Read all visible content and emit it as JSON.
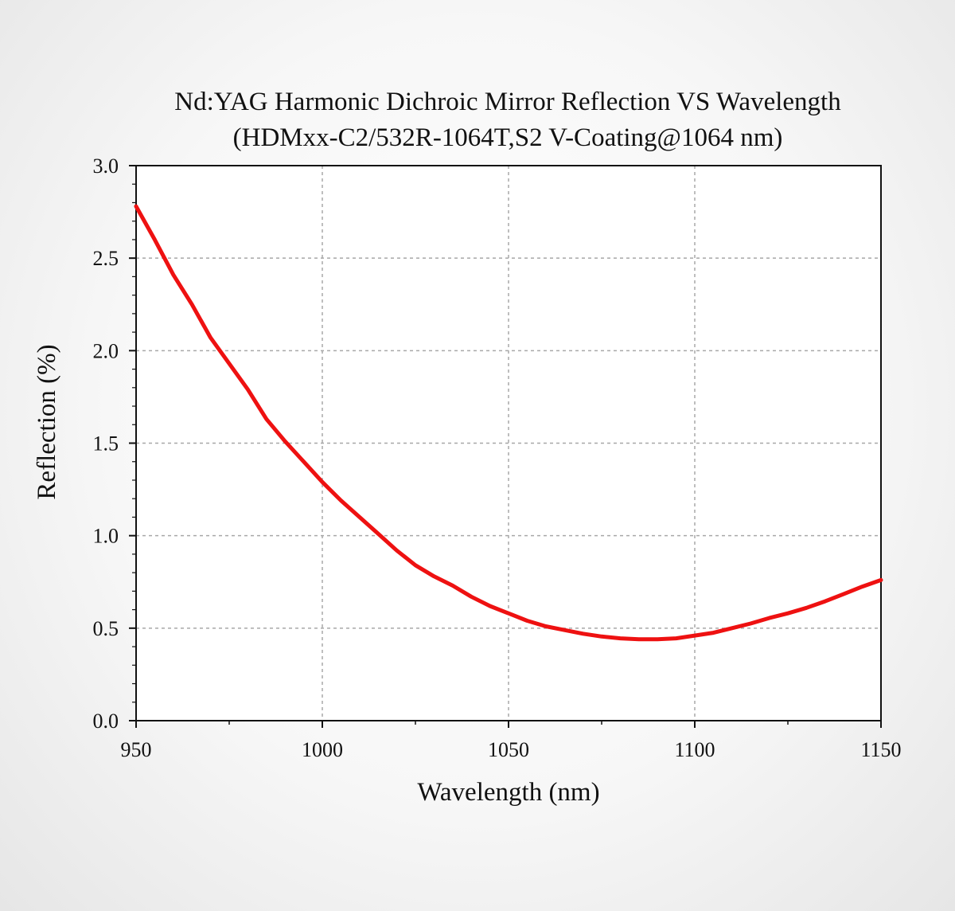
{
  "chart_data": {
    "type": "line",
    "title": "Nd:YAG Harmonic Dichroic Mirror Reflection VS Wavelength",
    "subtitle": "(HDMxx-C2/532R-1064T,S2 V-Coating@1064 nm)",
    "xlabel": "Wavelength (nm)",
    "ylabel": "Reflection (%)",
    "xlim": [
      950,
      1150
    ],
    "ylim": [
      0,
      3.0
    ],
    "x_ticks": [
      "950",
      "1000",
      "1050",
      "1100",
      "1150"
    ],
    "y_ticks": [
      "0.0",
      "0.5",
      "1.0",
      "1.5",
      "2.0",
      "2.5",
      "3.0"
    ],
    "grid": true,
    "line_color": "#ee1111",
    "series": [
      {
        "x": [
          950,
          955,
          960,
          965,
          970,
          975,
          980,
          985,
          990,
          995,
          1000,
          1005,
          1010,
          1015,
          1020,
          1025,
          1030,
          1035,
          1040,
          1045,
          1050,
          1055,
          1060,
          1065,
          1070,
          1075,
          1080,
          1085,
          1090,
          1095,
          1100,
          1105,
          1110,
          1115,
          1120,
          1125,
          1130,
          1135,
          1140,
          1145,
          1150
        ],
        "values": [
          2.78,
          2.6,
          2.41,
          2.25,
          2.07,
          1.93,
          1.79,
          1.63,
          1.51,
          1.4,
          1.29,
          1.19,
          1.1,
          1.01,
          0.92,
          0.84,
          0.78,
          0.73,
          0.67,
          0.62,
          0.58,
          0.54,
          0.51,
          0.49,
          0.47,
          0.455,
          0.445,
          0.44,
          0.44,
          0.445,
          0.46,
          0.475,
          0.5,
          0.525,
          0.555,
          0.58,
          0.61,
          0.645,
          0.685,
          0.725,
          0.76
        ]
      }
    ]
  }
}
